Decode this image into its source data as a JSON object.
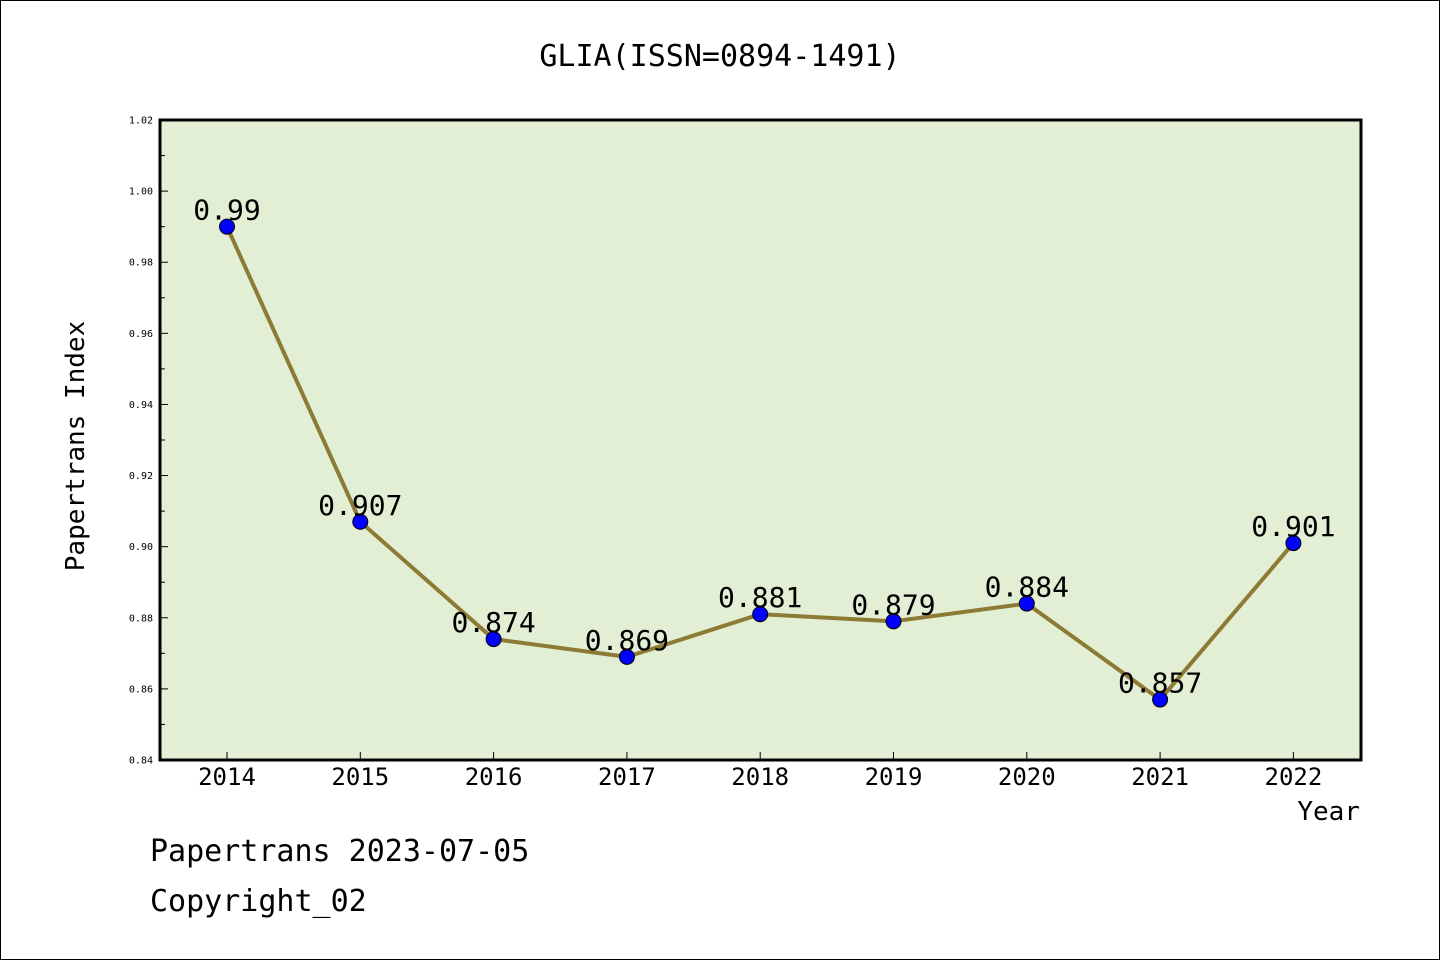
{
  "chart_data": {
    "type": "line",
    "title": "GLIA(ISSN=0894-1491)",
    "xlabel": "Year",
    "ylabel": "Papertrans Index",
    "categories": [
      "2014",
      "2015",
      "2016",
      "2017",
      "2018",
      "2019",
      "2020",
      "2021",
      "2022"
    ],
    "values": [
      0.99,
      0.907,
      0.874,
      0.869,
      0.881,
      0.879,
      0.884,
      0.857,
      0.901
    ],
    "data_labels": [
      "0.99",
      "0.907",
      "0.874",
      "0.869",
      "0.881",
      "0.879",
      "0.884",
      "0.857",
      "0.901"
    ],
    "ylim": [
      0.84,
      1.02
    ],
    "yticks": [
      "0.84",
      "0.86",
      "0.88",
      "0.90",
      "0.92",
      "0.94",
      "0.96",
      "0.98",
      "1.00",
      "1.02"
    ],
    "grid": false,
    "colors": {
      "plot_background": "#e2efd4",
      "line": "#8c7a35",
      "marker": "#0000ff",
      "axis": "#000000"
    }
  },
  "footer": {
    "line1": "Papertrans 2023-07-05",
    "line2": "Copyright_02"
  }
}
